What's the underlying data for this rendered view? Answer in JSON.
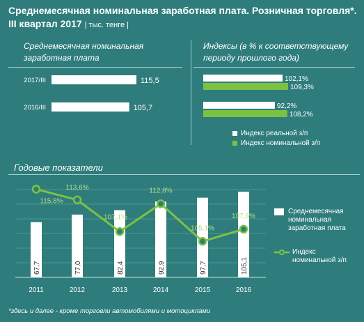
{
  "title": "Среднемесячная номинальная заработная плата. Розничная торговля*.",
  "title_line2": "III квартал 2017",
  "unit": "| тыс. тенге |",
  "left_panel": {
    "heading_line1": "Среднемесячная  номинальная",
    "heading_line2": "заработная плата"
  },
  "right_panel": {
    "heading_line1": "Индексы  (в % к соответствующему",
    "heading_line2": "периоду прошлого года)",
    "legend": [
      {
        "label": "Индекс реальной з/п",
        "color": "#ffffff"
      },
      {
        "label": "Индекс номинальной з/п",
        "color": "#7dc142"
      }
    ]
  },
  "annual_heading": "Годовые показатели",
  "annual_legend": {
    "bar_line1": "Среднемесячная",
    "bar_line2": "номинальная",
    "bar_line3": "заработная плата",
    "line_line1": "Индекс",
    "line_line2": "номинальной з/п"
  },
  "footnote": "*здесь и далее - кроме торговли автомобилями и мотоциклами",
  "colors": {
    "background": "#2e7d7c",
    "bar": "#ffffff",
    "green": "#7dc142",
    "label_green": "#b8de8a"
  },
  "chart_data": [
    {
      "type": "bar",
      "orientation": "horizontal",
      "categories": [
        "2017/III",
        "2016/III"
      ],
      "values": [
        115.5,
        105.7
      ],
      "value_labels": [
        "115,5",
        "105,7"
      ]
    },
    {
      "type": "bar",
      "orientation": "horizontal",
      "categories": [
        "2017/III",
        "2016/III"
      ],
      "series": [
        {
          "name": "Индекс реальной з/п",
          "values": [
            102.1,
            92.2
          ],
          "labels": [
            "102,1%",
            "92,2%"
          ]
        },
        {
          "name": "Индекс номинальной з/п",
          "values": [
            109.3,
            108.2
          ],
          "labels": [
            "109,3%",
            "108,2%"
          ]
        }
      ]
    },
    {
      "type": "bar+line",
      "categories": [
        "2011",
        "2012",
        "2013",
        "2014",
        "2015",
        "2016"
      ],
      "series": [
        {
          "name": "Среднемесячная номинальная заработная плата",
          "type": "bar",
          "values": [
            67.7,
            77.0,
            82.4,
            92.9,
            97.7,
            105.1
          ],
          "labels": [
            "67,7",
            "77,0",
            "82,4",
            "92,9",
            "97,7",
            "105,1"
          ]
        },
        {
          "name": "Индекс номинальной з/п",
          "type": "line",
          "values": [
            115.8,
            113.6,
            107.1,
            112.8,
            105.1,
            107.6
          ],
          "labels": [
            "115,8%",
            "113,6%",
            "107,1%",
            "112,8%",
            "105,1%",
            "107,6%"
          ]
        }
      ],
      "grid": true,
      "legend_position": "right"
    }
  ]
}
